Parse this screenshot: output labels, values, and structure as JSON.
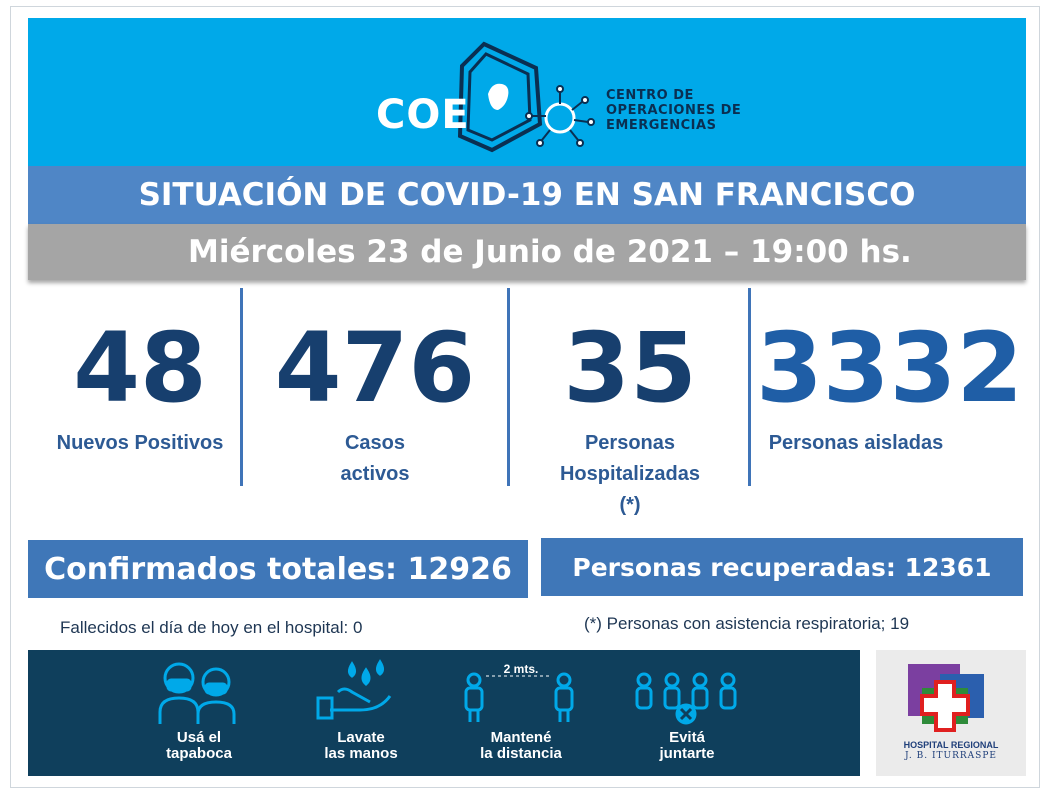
{
  "header": {
    "logo_text": "COE",
    "logo_description": [
      "CENTRO DE",
      "OPERACIONES DE",
      "EMERGENCIAS"
    ],
    "title": "SITUACIÓN DE COVID-19 EN SAN FRANCISCO",
    "date": "Miércoles 23 de Junio de 2021 – 19:00 hs."
  },
  "stats": [
    {
      "value": "48",
      "label_lines": [
        "Nuevos Positivos"
      ]
    },
    {
      "value": "476",
      "label_lines": [
        "Casos",
        "activos"
      ]
    },
    {
      "value": "35",
      "label_lines": [
        "Personas",
        "Hospitalizadas",
        "(*)"
      ]
    },
    {
      "value": "3332",
      "label_lines": [
        "Personas aisladas"
      ]
    }
  ],
  "totals": {
    "confirmados": "Confirmados totales: 12926",
    "recuperadas": "Personas recuperadas: 12361",
    "fallecidos_note": "Fallecidos el día de hoy en el hospital: 0",
    "asistencia_note": "(*) Personas con asistencia respiratoria; 19"
  },
  "tips": [
    {
      "line1": "Usá el",
      "line2": "tapaboca",
      "icon": "mask-icon"
    },
    {
      "line1": "Lavate",
      "line2": "las manos",
      "icon": "hand-wash-icon"
    },
    {
      "line1": "Mantené",
      "line2": "la distancia",
      "icon": "distance-icon",
      "distance_text": "2 mts."
    },
    {
      "line1": "Evitá",
      "line2": "juntarte",
      "icon": "crowd-icon"
    }
  ],
  "hospital": {
    "name": "HOSPITAL REGIONAL",
    "sub": "J. B. ITURRASPE"
  },
  "colors": {
    "header_bg": "#00a9e9",
    "title_bar": "#4f86c6",
    "date_bar": "#a5a5a5",
    "number_dark": "#173f6e",
    "number_blue": "#1f5ea6",
    "banner_bg": "#0f3f5c"
  }
}
